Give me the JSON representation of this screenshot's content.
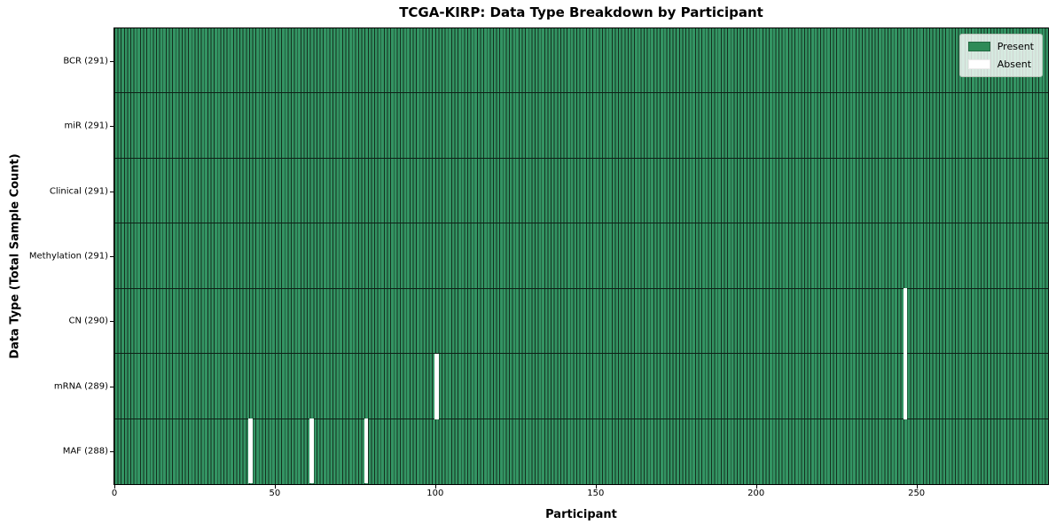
{
  "chart_data": {
    "type": "heatmap",
    "title": "TCGA-KIRP: Data Type Breakdown by Participant",
    "xlabel": "Participant",
    "ylabel": "Data Type (Total Sample Count)",
    "n_participants": 291,
    "xlim": [
      0,
      291
    ],
    "x_ticks": [
      0,
      50,
      100,
      150,
      200,
      250
    ],
    "x_tick_labels": [
      "0",
      "50",
      "100",
      "150",
      "200",
      "250"
    ],
    "rows": [
      {
        "data_type": "BCR",
        "label": "BCR (291)",
        "present_count": 291,
        "absent_participants": []
      },
      {
        "data_type": "miR",
        "label": "miR (291)",
        "present_count": 291,
        "absent_participants": []
      },
      {
        "data_type": "Clinical",
        "label": "Clinical (291)",
        "present_count": 291,
        "absent_participants": []
      },
      {
        "data_type": "Methylation",
        "label": "Methylation (291)",
        "present_count": 291,
        "absent_participants": []
      },
      {
        "data_type": "CN",
        "label": "CN (290)",
        "present_count": 290,
        "absent_participants": [
          246
        ]
      },
      {
        "data_type": "mRNA",
        "label": "mRNA (289)",
        "present_count": 289,
        "absent_participants": [
          100,
          246
        ]
      },
      {
        "data_type": "MAF",
        "label": "MAF (288)",
        "present_count": 288,
        "absent_participants": [
          42,
          61,
          78
        ]
      }
    ],
    "legend": {
      "position": "upper-right",
      "entries": [
        {
          "label": "Present",
          "color": "#2e8b57"
        },
        {
          "label": "Absent",
          "color": "#ffffff"
        }
      ]
    },
    "colors": {
      "present": "#2e8b57",
      "present_fill": "#339463",
      "absent": "#ffffff",
      "cell_edge": "#14301f",
      "row_separator": "#0d2016",
      "spine": "#000000",
      "text": "#000000"
    }
  }
}
